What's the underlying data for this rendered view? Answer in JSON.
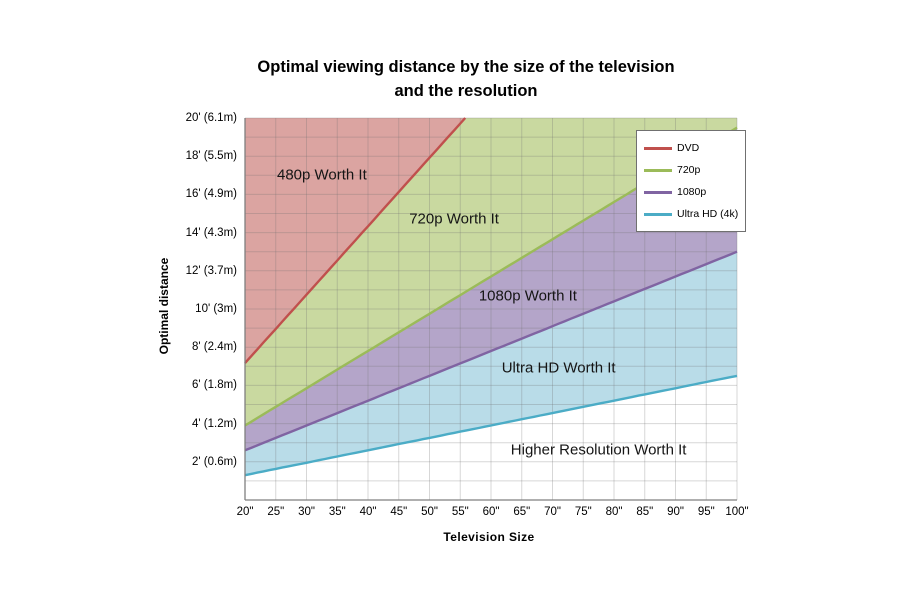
{
  "chart_data": {
    "type": "area",
    "title": "Optimal viewing distance by the size of the television and the resolution",
    "title_lines": [
      "Optimal viewing distance by the size of the television",
      "and the resolution"
    ],
    "xlabel": "Television Size",
    "ylabel": "Optimal distance",
    "xlim": [
      20,
      100
    ],
    "ylim": [
      0,
      20
    ],
    "grid": true,
    "legend_position": "top-right",
    "x": [
      20,
      25,
      30,
      35,
      40,
      45,
      50,
      55,
      60,
      65,
      70,
      75,
      80,
      85,
      90,
      95,
      100
    ],
    "x_tick_labels": [
      "20\"",
      "25\"",
      "30\"",
      "35\"",
      "40\"",
      "45\"",
      "50\"",
      "55\"",
      "60\"",
      "65\"",
      "70\"",
      "75\"",
      "80\"",
      "85\"",
      "90\"",
      "95\"",
      "100\""
    ],
    "y_ticks": [
      2,
      4,
      6,
      8,
      10,
      12,
      14,
      16,
      18,
      20
    ],
    "y_tick_labels": [
      "2' (0.6m)",
      "4' (1.2m)",
      "6' (1.8m)",
      "8' (2.4m)",
      "10' (3m)",
      "12' (3.7m)",
      "14' (4.3m)",
      "16' (4.9m)",
      "18' (5.5m)",
      "20' (6.1m)"
    ],
    "y_unit": "feet (meters)",
    "x_unit": "TV diagonal inches",
    "series": [
      {
        "name": "DVD",
        "color": "#c0504d",
        "values": [
          7.17,
          8.96,
          10.75,
          12.54,
          14.33,
          16.13,
          17.92,
          19.71,
          21.5,
          23.29,
          25.08,
          26.88,
          28.67,
          30.46,
          32.25,
          34.04,
          35.83
        ]
      },
      {
        "name": "720p",
        "color": "#9bbb59",
        "values": [
          3.9,
          4.88,
          5.85,
          6.83,
          7.8,
          8.78,
          9.75,
          10.73,
          11.7,
          12.68,
          13.65,
          14.63,
          15.6,
          16.58,
          17.55,
          18.53,
          19.5
        ]
      },
      {
        "name": "1080p",
        "color": "#8064a2",
        "values": [
          2.6,
          3.25,
          3.9,
          4.55,
          5.2,
          5.85,
          6.5,
          7.15,
          7.8,
          8.45,
          9.1,
          9.75,
          10.4,
          11.05,
          11.7,
          12.35,
          13.0
        ]
      },
      {
        "name": "Ultra HD (4k)",
        "color": "#4bacc6",
        "values": [
          1.3,
          1.63,
          1.95,
          2.28,
          2.6,
          2.93,
          3.25,
          3.58,
          3.9,
          4.23,
          4.55,
          4.88,
          5.2,
          5.53,
          5.85,
          6.18,
          6.5
        ]
      }
    ],
    "areas": [
      {
        "label": "Higher Resolution Worth It",
        "lower": null,
        "upper": "Ultra HD (4k)",
        "color": "#ffffff"
      },
      {
        "label": "Ultra HD Worth It",
        "lower": "Ultra HD (4k)",
        "upper": "1080p",
        "color": "#b9dce8"
      },
      {
        "label": "1080p Worth It",
        "lower": "1080p",
        "upper": "720p",
        "color": "#b4a5c9"
      },
      {
        "label": "720p Worth It",
        "lower": "720p",
        "upper": "DVD",
        "color": "#c9d9a0"
      },
      {
        "label": "480p Worth It",
        "lower": "DVD",
        "upper": null,
        "color": "#dba4a1"
      }
    ],
    "region_labels": [
      {
        "text": "480p Worth It",
        "x": 32.5,
        "y": 17.0
      },
      {
        "text": "720p Worth It",
        "x": 54.0,
        "y": 14.7
      },
      {
        "text": "1080p Worth It",
        "x": 66.0,
        "y": 10.7
      },
      {
        "text": "Ultra HD Worth It",
        "x": 71.0,
        "y": 6.9
      },
      {
        "text": "Higher Resolution Worth It",
        "x": 77.5,
        "y": 2.6
      }
    ]
  }
}
